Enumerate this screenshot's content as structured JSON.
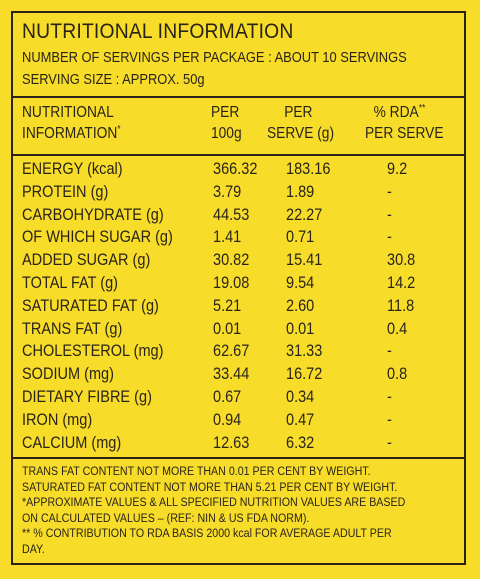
{
  "header": {
    "title": "NUTRITIONAL INFORMATION",
    "servings_per_package": "NUMBER OF SERVINGS PER PACKAGE : ABOUT 10 SERVINGS",
    "serving_size": "SERVING SIZE : APPROX. 50g"
  },
  "columns": {
    "label_line1": "NUTRITIONAL",
    "label_line2": "INFORMATION",
    "label_mark": "*",
    "per100_line1": "PER",
    "per100_line2": "100g",
    "serve_line1": "PER",
    "serve_line2": "SERVE (g)",
    "rda_line1": "% RDA",
    "rda_mark": "**",
    "rda_line2": "PER SERVE"
  },
  "rows": [
    {
      "name": "ENERGY (kcal)",
      "per100": "366.32",
      "serve": "183.16",
      "rda": "9.2"
    },
    {
      "name": "PROTEIN (g)",
      "per100": "3.79",
      "serve": "1.89",
      "rda": "-"
    },
    {
      "name": "CARBOHYDRATE (g)",
      "per100": "44.53",
      "serve": "22.27",
      "rda": "-"
    },
    {
      "name": "OF WHICH SUGAR (g)",
      "per100": "1.41",
      "serve": "0.71",
      "rda": "-"
    },
    {
      "name": "ADDED SUGAR (g)",
      "per100": "30.82",
      "serve": "15.41",
      "rda": "30.8"
    },
    {
      "name": "TOTAL FAT (g)",
      "per100": "19.08",
      "serve": "9.54",
      "rda": "14.2"
    },
    {
      "name": "SATURATED FAT (g)",
      "per100": "5.21",
      "serve": "2.60",
      "rda": "11.8"
    },
    {
      "name": "TRANS FAT (g)",
      "per100": "0.01",
      "serve": "0.01",
      "rda": "0.4"
    },
    {
      "name": "CHOLESTEROL (mg)",
      "per100": "62.67",
      "serve": "31.33",
      "rda": "-"
    },
    {
      "name": "SODIUM (mg)",
      "per100": "33.44",
      "serve": "16.72",
      "rda": "0.8"
    },
    {
      "name": "DIETARY FIBRE (g)",
      "per100": "0.67",
      "serve": "0.34",
      "rda": "-"
    },
    {
      "name": "IRON (mg)",
      "per100": "0.94",
      "serve": "0.47",
      "rda": "-"
    },
    {
      "name": "CALCIUM (mg)",
      "per100": "12.63",
      "serve": "6.32",
      "rda": "-"
    }
  ],
  "notes": [
    "TRANS FAT CONTENT NOT MORE THAN 0.01 PER CENT BY WEIGHT.",
    "SATURATED FAT CONTENT NOT MORE THAN 5.21 PER CENT BY WEIGHT.",
    "*APPROXIMATE VALUES & ALL SPECIFIED NUTRITION VALUES ARE BASED",
    "ON CALCULATED VALUES – (REF: NIN & US FDA NORM).",
    "** % CONTRIBUTION TO RDA  BASIS 2000 kcal FOR AVERAGE ADULT PER",
    "DAY."
  ],
  "colors": {
    "background": "#f7dc2a",
    "ink": "#2a2418"
  }
}
